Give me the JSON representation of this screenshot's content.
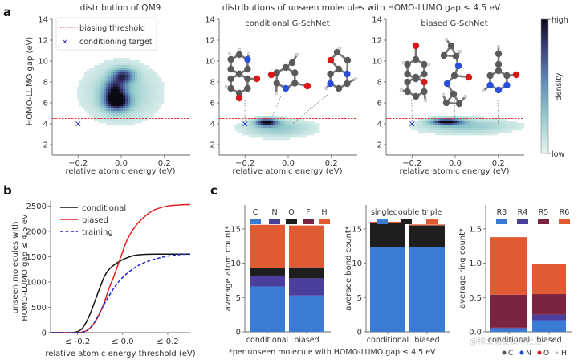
{
  "figure": {
    "panel_letters": [
      "a",
      "b",
      "c"
    ],
    "footnote": "*per unseen molecule with HOMO-LUMO gap ≤ 4.5 eV",
    "atom_key": [
      {
        "label": "C",
        "color": "#555555"
      },
      {
        "label": "N",
        "color": "#2244cc"
      },
      {
        "label": "O",
        "color": "#dd1111"
      },
      {
        "label": "H",
        "color": "#bbbbbb"
      }
    ],
    "watermark": "@稀土掘金技术社区"
  },
  "chart_data": [
    {
      "id": "a1",
      "type": "heatmap",
      "title": "distribution of QM9",
      "xlabel": "relative atomic energy (eV)",
      "ylabel": "HOMO-LUMO gap (eV)",
      "xlim": [
        -0.32,
        0.32
      ],
      "ylim": [
        1,
        14
      ],
      "xticks": [
        -0.2,
        0.0,
        0.2
      ],
      "xtick_labels": [
        "−0.2",
        "0.0",
        "0.2"
      ],
      "yticks": [
        2,
        4,
        6,
        8,
        10,
        12,
        14
      ],
      "legend": {
        "placement": "top-left",
        "entries": [
          "biasing threshold",
          "conditioning target"
        ]
      },
      "threshold": 4.5,
      "conditioning_target": {
        "x": -0.2,
        "y": 4.0
      },
      "density_peaks": [
        {
          "x": -0.02,
          "y": 6.1,
          "sx": 0.04,
          "sy": 0.6,
          "w": 1.0
        },
        {
          "x": -0.03,
          "y": 7.3,
          "sx": 0.035,
          "sy": 0.7,
          "w": 0.7
        },
        {
          "x": 0.01,
          "y": 8.6,
          "sx": 0.035,
          "sy": 0.5,
          "w": 0.7
        },
        {
          "x": 0.0,
          "y": 7.0,
          "sx": 0.12,
          "sy": 1.9,
          "w": 0.25
        }
      ]
    },
    {
      "id": "a2",
      "type": "heatmap",
      "suptitle": "distributions of unseen molecules with HOMO-LUMO gap ≤ 4.5 eV",
      "title": "conditional G-SchNet",
      "xlabel": "relative atomic energy (eV)",
      "xlim": [
        -0.32,
        0.32
      ],
      "ylim": [
        1,
        14
      ],
      "xticks": [
        -0.2,
        0.0,
        0.2
      ],
      "xtick_labels": [
        "−0.2",
        "0.0",
        "0.2"
      ],
      "yticks": [
        2,
        4,
        6,
        8,
        10,
        12,
        14
      ],
      "threshold": 4.5,
      "conditioning_target": {
        "x": -0.2,
        "y": 4.0
      },
      "density_peaks": [
        {
          "x": -0.1,
          "y": 4.15,
          "sx": 0.035,
          "sy": 0.25,
          "w": 1.0
        },
        {
          "x": -0.05,
          "y": 3.6,
          "sx": 0.11,
          "sy": 0.6,
          "w": 0.3
        }
      ],
      "molecule_annotations": [
        {
          "name": "molecule-1",
          "anchor_x": -0.2,
          "anchor_y": 4.2
        },
        {
          "name": "molecule-2",
          "anchor_x": -0.08,
          "anchor_y": 4.4
        },
        {
          "name": "molecule-3",
          "anchor_x": 0.02,
          "anchor_y": 4.0
        }
      ]
    },
    {
      "id": "a3",
      "type": "heatmap",
      "title": "biased G-SchNet",
      "xlabel": "relative atomic energy (eV)",
      "xlim": [
        -0.32,
        0.32
      ],
      "ylim": [
        1,
        14
      ],
      "xticks": [
        -0.2,
        0.0,
        0.2
      ],
      "xtick_labels": [
        "−0.2",
        "0.0",
        "0.2"
      ],
      "yticks": [
        2,
        4,
        6,
        8,
        10,
        12,
        14
      ],
      "threshold": 4.5,
      "conditioning_target": {
        "x": -0.2,
        "y": 4.0
      },
      "density_peaks": [
        {
          "x": -0.04,
          "y": 4.2,
          "sx": 0.05,
          "sy": 0.22,
          "w": 1.0
        },
        {
          "x": 0.05,
          "y": 3.8,
          "sx": 0.15,
          "sy": 0.5,
          "w": 0.3
        }
      ],
      "molecule_annotations": [
        {
          "name": "molecule-4",
          "anchor_x": -0.2,
          "anchor_y": 4.2
        },
        {
          "name": "molecule-5",
          "anchor_x": 0.0,
          "anchor_y": 4.2
        },
        {
          "name": "molecule-6",
          "anchor_x": 0.2,
          "anchor_y": 4.0
        }
      ],
      "colorbar": {
        "label": "density",
        "high": "high",
        "low": "low"
      }
    },
    {
      "id": "b",
      "type": "line",
      "xlabel": "relative atomic energy threshold (eV)",
      "ylabel": "unseen molecules with HOMO-LUMO gap ≤ 4.5 eV",
      "ylabel_lines": [
        "unseen molecules with",
        "HOMO-LUMO gap ≤ 4.5 eV"
      ],
      "xlim": [
        -0.32,
        0.3
      ],
      "ylim": [
        0,
        2600
      ],
      "xticks": [
        -0.2,
        0.0,
        0.2
      ],
      "xtick_labels": [
        "≤ -0.2",
        "≤ 0.0",
        "≤ 0.2"
      ],
      "yticks": [
        0,
        500,
        1000,
        1500,
        2000,
        2500
      ],
      "legend": {
        "placement": "top-left"
      },
      "x": [
        -0.32,
        -0.25,
        -0.22,
        -0.2,
        -0.18,
        -0.16,
        -0.14,
        -0.12,
        -0.1,
        -0.08,
        -0.06,
        -0.04,
        -0.02,
        0.0,
        0.02,
        0.04,
        0.06,
        0.08,
        0.1,
        0.12,
        0.15,
        0.2,
        0.25,
        0.3
      ],
      "series": [
        {
          "name": "conditional",
          "color": "#111111",
          "dash": "solid",
          "values": [
            0,
            0,
            5,
            20,
            80,
            220,
            420,
            660,
            900,
            1120,
            1250,
            1330,
            1390,
            1440,
            1480,
            1510,
            1530,
            1540,
            1545,
            1548,
            1550,
            1550,
            1550,
            1550
          ]
        },
        {
          "name": "biased",
          "color": "#e02020",
          "dash": "solid",
          "values": [
            0,
            0,
            0,
            0,
            10,
            40,
            110,
            230,
            400,
            620,
            880,
            1100,
            1350,
            1600,
            1830,
            1990,
            2120,
            2220,
            2300,
            2370,
            2440,
            2500,
            2520,
            2530
          ]
        },
        {
          "name": "training",
          "color": "#2020cc",
          "dash": "dashed",
          "values": [
            0,
            0,
            0,
            0,
            10,
            40,
            120,
            240,
            410,
            580,
            730,
            870,
            990,
            1090,
            1170,
            1240,
            1300,
            1350,
            1390,
            1420,
            1460,
            1510,
            1540,
            1550
          ]
        }
      ]
    },
    {
      "id": "c1",
      "type": "bar",
      "stacked": true,
      "ylabel": "average atom count*",
      "categories": [
        "conditional",
        "biased"
      ],
      "ylim": [
        0,
        18.5
      ],
      "yticks": [
        0,
        5,
        10,
        15
      ],
      "legend": {
        "placement": "top"
      },
      "series": [
        {
          "name": "C",
          "color": "#3a7bd5",
          "values": [
            6.6,
            5.3
          ]
        },
        {
          "name": "N",
          "color": "#4b3f9e",
          "values": [
            1.6,
            2.5
          ]
        },
        {
          "name": "O",
          "color": "#1e1e1e",
          "values": [
            1.1,
            1.6
          ]
        },
        {
          "name": "F",
          "color": "#7a2442",
          "values": [
            0.0,
            0.0
          ]
        },
        {
          "name": "H",
          "color": "#e05a32",
          "values": [
            6.3,
            6.1
          ]
        }
      ]
    },
    {
      "id": "c2",
      "type": "bar",
      "stacked": true,
      "ylabel": "average bond count*",
      "categories": [
        "conditional",
        "biased"
      ],
      "ylim": [
        0,
        18.5
      ],
      "yticks": [
        0,
        5,
        10,
        15
      ],
      "legend": {
        "placement": "top"
      },
      "series": [
        {
          "name": "single",
          "color": "#3a7bd5",
          "values": [
            12.4,
            12.4
          ]
        },
        {
          "name": "double",
          "color": "#1e1e1e",
          "values": [
            3.5,
            3.1
          ]
        },
        {
          "name": "triple",
          "color": "#e05a32",
          "values": [
            0.15,
            0.15
          ]
        }
      ]
    },
    {
      "id": "c3",
      "type": "bar",
      "stacked": true,
      "ylabel": "average ring count*",
      "categories": [
        "conditional",
        "biased"
      ],
      "ylim": [
        0,
        1.85
      ],
      "yticks": [
        0.0,
        0.5,
        1.0,
        1.5
      ],
      "ytick_labels": [
        "0.0",
        "0.5",
        "1.0",
        "1.5"
      ],
      "legend": {
        "placement": "top"
      },
      "series": [
        {
          "name": "R3",
          "color": "#3a7bd5",
          "values": [
            0.05,
            0.17
          ]
        },
        {
          "name": "R4",
          "color": "#4b3f9e",
          "values": [
            0.01,
            0.08
          ]
        },
        {
          "name": "R5",
          "color": "#7a2442",
          "values": [
            0.48,
            0.3
          ]
        },
        {
          "name": "R6",
          "color": "#e05a32",
          "values": [
            0.84,
            0.44
          ]
        }
      ]
    }
  ]
}
